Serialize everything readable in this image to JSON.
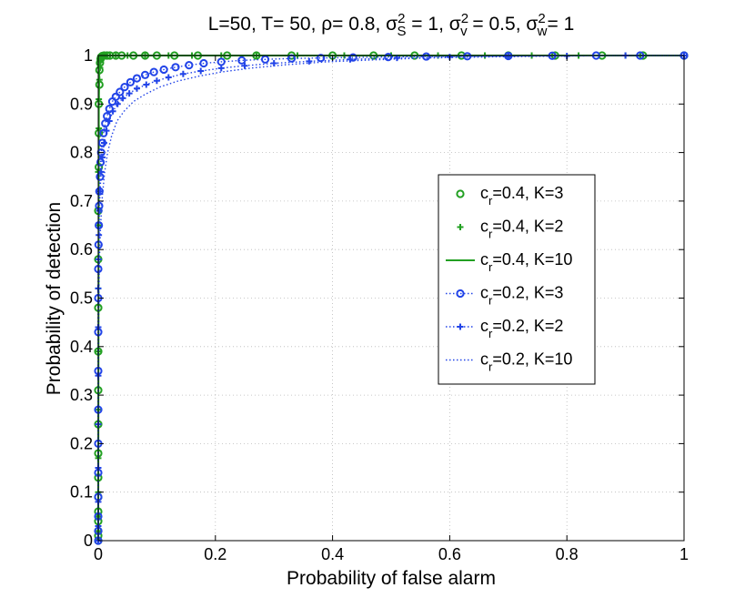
{
  "chart_data": {
    "type": "line",
    "title": {
      "parts": [
        {
          "t": "L=50, T= 50, ρ= 0.8, σ"
        },
        {
          "t": "2",
          "sup": true
        },
        {
          "t": "S",
          "sub": true
        },
        {
          "t": " = 1, σ"
        },
        {
          "t": "2",
          "sup": true
        },
        {
          "t": "v",
          "sub": true
        },
        {
          "t": " = 0.5, σ"
        },
        {
          "t": "2",
          "sup": true
        },
        {
          "t": "w",
          "sub": true
        },
        {
          "t": "= 1"
        }
      ]
    },
    "xlabel": "Probability of false alarm",
    "ylabel": "Probability of detection",
    "xlim": [
      0,
      1
    ],
    "ylim": [
      0,
      1
    ],
    "xticks": [
      0,
      0.2,
      0.4,
      0.6,
      0.8,
      1
    ],
    "xtick_labels": [
      "0",
      "0.2",
      "0.4",
      "0.6",
      "0.8",
      "1"
    ],
    "yticks": [
      0,
      0.1,
      0.2,
      0.3,
      0.4,
      0.5,
      0.6,
      0.7,
      0.8,
      0.9,
      1
    ],
    "ytick_labels": [
      "0",
      "0.1",
      "0.2",
      "0.3",
      "0.4",
      "0.5",
      "0.6",
      "0.7",
      "0.8",
      "0.9",
      "1"
    ],
    "grid": true,
    "legend_position": "center-right",
    "series": [
      {
        "name": "c_r=0.4, K=3",
        "legend_label": {
          "base": "c",
          "sub": "r",
          "rest": "=0.4, K=3"
        },
        "color": "#22a022",
        "marker": "circle",
        "line": "none",
        "x": [
          0,
          0,
          0,
          0,
          0,
          0,
          0,
          0,
          0,
          0,
          0,
          0,
          0,
          0,
          0.001,
          0.001,
          0.001,
          0.002,
          0.002,
          0.003,
          0.004,
          0.005,
          0.007,
          0.01,
          0.015,
          0.02,
          0.03,
          0.04,
          0.06,
          0.08,
          0.1,
          0.13,
          0.17,
          0.22,
          0.27,
          0.33,
          0.4,
          0.47,
          0.54,
          0.62,
          0.7,
          0.78,
          0.86,
          0.93,
          1.0
        ],
        "y": [
          0.0,
          0.01,
          0.02,
          0.04,
          0.06,
          0.09,
          0.13,
          0.18,
          0.24,
          0.31,
          0.39,
          0.48,
          0.58,
          0.68,
          0.77,
          0.84,
          0.9,
          0.94,
          0.97,
          0.985,
          0.993,
          0.997,
          0.999,
          1,
          1,
          1,
          1,
          1,
          1,
          1,
          1,
          1,
          1,
          1,
          1,
          1,
          1,
          1,
          1,
          1,
          1,
          1,
          1,
          1,
          1
        ]
      },
      {
        "name": "c_r=0.4, K=2",
        "legend_label": {
          "base": "c",
          "sub": "r",
          "rest": "=0.4, K=2"
        },
        "color": "#22a022",
        "marker": "plus",
        "line": "none",
        "x": [
          0,
          0,
          0,
          0,
          0,
          0,
          0,
          0,
          0,
          0,
          0.001,
          0.001,
          0.002,
          0.003,
          0.004,
          0.006,
          0.008,
          0.012,
          0.02,
          0.03,
          0.05,
          0.08,
          0.12,
          0.16,
          0.21,
          0.27,
          0.34,
          0.42,
          0.5,
          0.58,
          0.66,
          0.74,
          0.82,
          0.9,
          1.0
        ],
        "y": [
          0.0,
          0.02,
          0.05,
          0.1,
          0.17,
          0.27,
          0.39,
          0.52,
          0.65,
          0.76,
          0.85,
          0.91,
          0.95,
          0.975,
          0.988,
          0.995,
          0.998,
          1,
          1,
          1,
          1,
          1,
          1,
          1,
          1,
          1,
          1,
          1,
          1,
          1,
          1,
          1,
          1,
          1,
          1
        ]
      },
      {
        "name": "c_r=0.4, K=10",
        "legend_label": {
          "base": "c",
          "sub": "r",
          "rest": "=0.4, K=10"
        },
        "color": "#22a022",
        "marker": "none",
        "line": "solid",
        "x": [
          0,
          0.0005,
          0.001,
          0.002,
          0.004,
          0.01,
          0.05,
          0.2,
          0.5,
          1.0
        ],
        "y": [
          0.0,
          0.5,
          0.9,
          0.98,
          0.998,
          1,
          1,
          1,
          1,
          1
        ]
      },
      {
        "name": "c_r=0.2, K=3",
        "legend_label": {
          "base": "c",
          "sub": "r",
          "rest": "=0.2, K=3"
        },
        "color": "#2244e8",
        "marker": "circle",
        "line": "dotted",
        "x": [
          0,
          0,
          0,
          0,
          0,
          0,
          0,
          0,
          0,
          0,
          0,
          0.0005,
          0.001,
          0.0015,
          0.002,
          0.003,
          0.004,
          0.005,
          0.007,
          0.009,
          0.012,
          0.015,
          0.019,
          0.024,
          0.03,
          0.037,
          0.045,
          0.055,
          0.066,
          0.08,
          0.095,
          0.112,
          0.132,
          0.155,
          0.18,
          0.21,
          0.245,
          0.285,
          0.33,
          0.38,
          0.435,
          0.495,
          0.56,
          0.63,
          0.7,
          0.775,
          0.85,
          0.925,
          1.0
        ],
        "y": [
          0.0,
          0.02,
          0.05,
          0.09,
          0.14,
          0.2,
          0.27,
          0.35,
          0.43,
          0.5,
          0.56,
          0.61,
          0.65,
          0.69,
          0.72,
          0.75,
          0.78,
          0.8,
          0.82,
          0.84,
          0.86,
          0.875,
          0.89,
          0.905,
          0.915,
          0.925,
          0.935,
          0.945,
          0.953,
          0.96,
          0.966,
          0.971,
          0.976,
          0.98,
          0.984,
          0.987,
          0.99,
          0.992,
          0.994,
          0.995,
          0.996,
          0.997,
          0.998,
          0.9985,
          0.999,
          0.9995,
          1,
          1,
          1
        ]
      },
      {
        "name": "c_r=0.2, K=2",
        "legend_label": {
          "base": "c",
          "sub": "r",
          "rest": "=0.2, K=2"
        },
        "color": "#2244e8",
        "marker": "plus",
        "line": "dotted",
        "x": [
          0,
          0,
          0,
          0,
          0,
          0,
          0,
          0,
          0.0005,
          0.001,
          0.002,
          0.003,
          0.005,
          0.007,
          0.01,
          0.014,
          0.019,
          0.025,
          0.033,
          0.042,
          0.053,
          0.066,
          0.082,
          0.1,
          0.12,
          0.145,
          0.175,
          0.21,
          0.25,
          0.3,
          0.36,
          0.43,
          0.51,
          0.6,
          0.7,
          0.8,
          0.9,
          1.0
        ],
        "y": [
          0.0,
          0.03,
          0.08,
          0.15,
          0.24,
          0.34,
          0.44,
          0.52,
          0.58,
          0.63,
          0.68,
          0.72,
          0.76,
          0.79,
          0.82,
          0.845,
          0.865,
          0.885,
          0.9,
          0.912,
          0.922,
          0.932,
          0.94,
          0.948,
          0.955,
          0.962,
          0.968,
          0.974,
          0.979,
          0.984,
          0.988,
          0.992,
          0.995,
          0.997,
          0.998,
          0.999,
          1,
          1
        ]
      },
      {
        "name": "c_r=0.2, K=10",
        "legend_label": {
          "base": "c",
          "sub": "r",
          "rest": "=0.2, K=10"
        },
        "color": "#2244e8",
        "marker": "none",
        "line": "dotted",
        "x": [
          0,
          0.0003,
          0.001,
          0.002,
          0.004,
          0.007,
          0.011,
          0.016,
          0.023,
          0.032,
          0.044,
          0.06,
          0.08,
          0.105,
          0.135,
          0.17,
          0.21,
          0.26,
          0.32,
          0.39,
          0.47,
          0.56,
          0.66,
          0.77,
          0.88,
          1.0
        ],
        "y": [
          0.0,
          0.35,
          0.5,
          0.58,
          0.65,
          0.71,
          0.76,
          0.8,
          0.835,
          0.865,
          0.885,
          0.905,
          0.92,
          0.935,
          0.947,
          0.957,
          0.966,
          0.974,
          0.981,
          0.987,
          0.991,
          0.995,
          0.997,
          0.999,
          1,
          1
        ]
      }
    ]
  }
}
